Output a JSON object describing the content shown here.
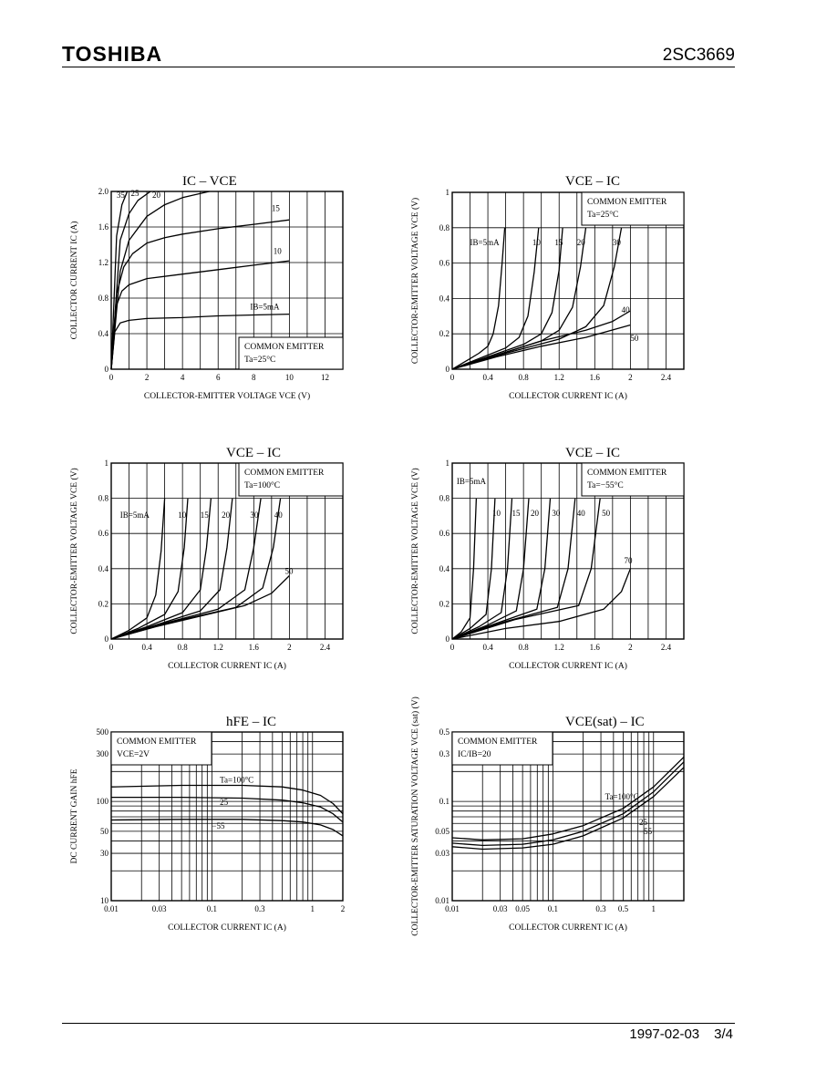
{
  "header": {
    "brand": "TOSHIBA",
    "part_number": "2SC3669"
  },
  "footer": {
    "date": "1997-02-03",
    "page": "3/4"
  },
  "colors": {
    "ink": "#000000",
    "paper": "#ffffff"
  },
  "chart_data": [
    {
      "id": "c1",
      "type": "line",
      "title": "IC – VCE",
      "xlabel": "COLLECTOR-EMITTER VOLTAGE  VCE  (V)",
      "ylabel": "COLLECTOR CURRENT  IC  (A)",
      "xlim": [
        0,
        13
      ],
      "ylim": [
        0,
        2.0
      ],
      "xticks": [
        0,
        2,
        4,
        6,
        8,
        10,
        12
      ],
      "yticks": [
        0,
        0.4,
        0.8,
        1.2,
        1.6,
        2.0
      ],
      "ytick_labels": [
        "0",
        "0.4",
        "0.8",
        "1.2",
        "1.6",
        "2.0"
      ],
      "annotations": [
        "COMMON EMITTER",
        "Ta=25°C"
      ],
      "series": [
        {
          "name": "IB=5mA",
          "x": [
            0,
            0.2,
            0.5,
            1,
            2,
            4,
            6,
            8,
            10
          ],
          "y": [
            0,
            0.42,
            0.52,
            0.55,
            0.57,
            0.58,
            0.6,
            0.61,
            0.62
          ]
        },
        {
          "name": "10",
          "x": [
            0,
            0.3,
            0.6,
            1,
            2,
            4,
            6,
            8,
            10
          ],
          "y": [
            0,
            0.72,
            0.88,
            0.95,
            1.02,
            1.07,
            1.12,
            1.17,
            1.22
          ]
        },
        {
          "name": "15",
          "x": [
            0,
            0.3,
            0.7,
            1.2,
            2,
            3,
            4,
            6,
            8,
            10
          ],
          "y": [
            0,
            0.85,
            1.15,
            1.3,
            1.42,
            1.48,
            1.52,
            1.58,
            1.63,
            1.68
          ]
        },
        {
          "name": "20",
          "x": [
            0,
            0.5,
            1,
            2,
            3,
            4,
            5.5
          ],
          "y": [
            0,
            1.1,
            1.45,
            1.72,
            1.85,
            1.93,
            2.0
          ]
        },
        {
          "name": "25",
          "x": [
            0,
            0.5,
            1,
            1.5,
            2.2
          ],
          "y": [
            0,
            1.45,
            1.75,
            1.9,
            2.0
          ]
        },
        {
          "name": "35",
          "x": [
            0,
            0.3,
            0.6,
            0.9
          ],
          "y": [
            0,
            1.5,
            1.85,
            2.0
          ]
        }
      ]
    },
    {
      "id": "c2",
      "type": "line",
      "title": "VCE – IC",
      "xlabel": "COLLECTOR CURRENT  IC  (A)",
      "ylabel": "COLLECTOR-EMITTER VOLTAGE  VCE  (V)",
      "xlim": [
        0,
        2.6
      ],
      "ylim": [
        0,
        1
      ],
      "xticks": [
        0,
        0.4,
        0.8,
        1.2,
        1.6,
        2.0,
        2.4
      ],
      "yticks": [
        0,
        0.2,
        0.4,
        0.6,
        0.8,
        1
      ],
      "ytick_labels": [
        "0",
        "0.2",
        "0.4",
        "0.6",
        "0.8",
        "1"
      ],
      "annotations": [
        "COMMON EMITTER",
        "Ta=25°C"
      ],
      "series": [
        {
          "name": "IB=5mA",
          "x": [
            0,
            0.1,
            0.2,
            0.3,
            0.4,
            0.46,
            0.52,
            0.56,
            0.59
          ],
          "y": [
            0,
            0.03,
            0.06,
            0.09,
            0.13,
            0.2,
            0.36,
            0.6,
            0.8
          ]
        },
        {
          "name": "10",
          "x": [
            0,
            0.3,
            0.6,
            0.75,
            0.85,
            0.92,
            0.97
          ],
          "y": [
            0,
            0.06,
            0.12,
            0.18,
            0.3,
            0.55,
            0.8
          ]
        },
        {
          "name": "15",
          "x": [
            0,
            0.4,
            0.8,
            1.0,
            1.12,
            1.2,
            1.24
          ],
          "y": [
            0,
            0.07,
            0.14,
            0.2,
            0.32,
            0.56,
            0.8
          ]
        },
        {
          "name": "20",
          "x": [
            0,
            0.5,
            1.0,
            1.2,
            1.35,
            1.44,
            1.5
          ],
          "y": [
            0,
            0.08,
            0.16,
            0.22,
            0.35,
            0.58,
            0.8
          ]
        },
        {
          "name": "30",
          "x": [
            0,
            0.6,
            1.2,
            1.5,
            1.7,
            1.82,
            1.9
          ],
          "y": [
            0,
            0.09,
            0.17,
            0.24,
            0.36,
            0.58,
            0.8
          ]
        },
        {
          "name": "40",
          "x": [
            0,
            0.5,
            1.0,
            1.5,
            1.8,
            2.0
          ],
          "y": [
            0,
            0.08,
            0.16,
            0.22,
            0.27,
            0.33
          ]
        },
        {
          "name": "50",
          "x": [
            0,
            0.5,
            1.0,
            1.5,
            2.0
          ],
          "y": [
            0,
            0.07,
            0.13,
            0.18,
            0.25
          ]
        }
      ]
    },
    {
      "id": "c3",
      "type": "line",
      "title": "VCE – IC",
      "xlabel": "COLLECTOR CURRENT  IC  (A)",
      "ylabel": "COLLECTOR-EMITTER VOLTAGE  VCE  (V)",
      "xlim": [
        0,
        2.6
      ],
      "ylim": [
        0,
        1
      ],
      "xticks": [
        0,
        0.4,
        0.8,
        1.2,
        1.6,
        2.0,
        2.4
      ],
      "yticks": [
        0,
        0.2,
        0.4,
        0.6,
        0.8,
        1
      ],
      "ytick_labels": [
        "0",
        "0.2",
        "0.4",
        "0.6",
        "0.8",
        "1"
      ],
      "annotations": [
        "COMMON EMITTER",
        "Ta=100°C"
      ],
      "series": [
        {
          "name": "IB=5mA",
          "x": [
            0,
            0.2,
            0.4,
            0.5,
            0.56,
            0.6
          ],
          "y": [
            0,
            0.05,
            0.12,
            0.25,
            0.5,
            0.8
          ]
        },
        {
          "name": "10",
          "x": [
            0,
            0.3,
            0.6,
            0.75,
            0.82,
            0.86
          ],
          "y": [
            0,
            0.06,
            0.14,
            0.27,
            0.52,
            0.8
          ]
        },
        {
          "name": "15",
          "x": [
            0,
            0.4,
            0.8,
            1.0,
            1.07,
            1.12
          ],
          "y": [
            0,
            0.07,
            0.15,
            0.28,
            0.52,
            0.8
          ]
        },
        {
          "name": "20",
          "x": [
            0,
            0.5,
            1.0,
            1.22,
            1.3,
            1.36
          ],
          "y": [
            0,
            0.08,
            0.16,
            0.28,
            0.52,
            0.8
          ]
        },
        {
          "name": "30",
          "x": [
            0,
            0.6,
            1.2,
            1.5,
            1.6,
            1.68
          ],
          "y": [
            0,
            0.09,
            0.17,
            0.28,
            0.52,
            0.8
          ]
        },
        {
          "name": "40",
          "x": [
            0,
            0.7,
            1.4,
            1.7,
            1.82,
            1.9
          ],
          "y": [
            0,
            0.1,
            0.18,
            0.29,
            0.52,
            0.8
          ]
        },
        {
          "name": "50",
          "x": [
            0,
            0.5,
            1.0,
            1.5,
            1.8,
            2.0
          ],
          "y": [
            0,
            0.07,
            0.13,
            0.19,
            0.26,
            0.36
          ]
        }
      ]
    },
    {
      "id": "c4",
      "type": "line",
      "title": "VCE – IC",
      "xlabel": "COLLECTOR CURRENT  IC  (A)",
      "ylabel": "COLLECTOR-EMITTER VOLTAGE  VCE  (V)",
      "xlim": [
        0,
        2.6
      ],
      "ylim": [
        0,
        1
      ],
      "xticks": [
        0,
        0.4,
        0.8,
        1.2,
        1.6,
        2.0,
        2.4
      ],
      "yticks": [
        0,
        0.2,
        0.4,
        0.6,
        0.8,
        1
      ],
      "ytick_labels": [
        "0",
        "0.2",
        "0.4",
        "0.6",
        "0.8",
        "1"
      ],
      "annotations": [
        "COMMON EMITTER",
        "Ta=−55°C"
      ],
      "series": [
        {
          "name": "IB=5mA",
          "x": [
            0,
            0.1,
            0.2,
            0.24,
            0.27
          ],
          "y": [
            0,
            0.04,
            0.12,
            0.4,
            0.8
          ]
        },
        {
          "name": "10",
          "x": [
            0,
            0.2,
            0.38,
            0.44,
            0.48
          ],
          "y": [
            0,
            0.06,
            0.14,
            0.4,
            0.8
          ]
        },
        {
          "name": "15",
          "x": [
            0,
            0.3,
            0.55,
            0.62,
            0.67
          ],
          "y": [
            0,
            0.07,
            0.15,
            0.4,
            0.8
          ]
        },
        {
          "name": "20",
          "x": [
            0,
            0.4,
            0.72,
            0.8,
            0.86
          ],
          "y": [
            0,
            0.08,
            0.16,
            0.4,
            0.8
          ]
        },
        {
          "name": "30",
          "x": [
            0,
            0.5,
            0.95,
            1.04,
            1.1
          ],
          "y": [
            0,
            0.09,
            0.17,
            0.4,
            0.8
          ]
        },
        {
          "name": "40",
          "x": [
            0,
            0.6,
            1.18,
            1.3,
            1.38
          ],
          "y": [
            0,
            0.1,
            0.18,
            0.4,
            0.8
          ]
        },
        {
          "name": "50",
          "x": [
            0,
            0.7,
            1.42,
            1.56,
            1.66
          ],
          "y": [
            0,
            0.11,
            0.19,
            0.4,
            0.8
          ]
        },
        {
          "name": "70",
          "x": [
            0,
            0.6,
            1.2,
            1.7,
            1.9,
            2.0
          ],
          "y": [
            0,
            0.06,
            0.1,
            0.17,
            0.27,
            0.4
          ]
        }
      ]
    },
    {
      "id": "c5",
      "type": "line",
      "scale": "log-log",
      "title": "hFE – IC",
      "xlabel": "COLLECTOR CURRENT  IC  (A)",
      "ylabel": "DC CURRENT GAIN  hFE",
      "xlim": [
        0.01,
        2
      ],
      "ylim": [
        10,
        500
      ],
      "xticks": [
        0.01,
        0.03,
        0.1,
        0.3,
        1,
        2
      ],
      "xtick_labels": [
        "0.01",
        "0.03",
        "0.1",
        "0.3",
        "1",
        "2"
      ],
      "yticks": [
        10,
        30,
        50,
        100,
        300,
        500
      ],
      "ytick_labels": [
        "10",
        "30",
        "50",
        "100",
        "300",
        "500"
      ],
      "annotations": [
        "COMMON EMITTER",
        "VCE=2V"
      ],
      "series": [
        {
          "name": "Ta=100°C",
          "x": [
            0.01,
            0.05,
            0.2,
            0.5,
            0.8,
            1.2,
            1.6,
            2
          ],
          "y": [
            140,
            145,
            145,
            140,
            130,
            115,
            95,
            75
          ]
        },
        {
          "name": "25",
          "x": [
            0.01,
            0.05,
            0.2,
            0.5,
            0.8,
            1.2,
            1.6,
            2
          ],
          "y": [
            110,
            110,
            108,
            103,
            97,
            88,
            75,
            62
          ]
        },
        {
          "name": "−55",
          "x": [
            0.01,
            0.05,
            0.2,
            0.5,
            0.8,
            1.2,
            1.6,
            2
          ],
          "y": [
            65,
            66,
            66,
            64,
            62,
            58,
            52,
            45
          ]
        }
      ]
    },
    {
      "id": "c6",
      "type": "line",
      "scale": "log-log",
      "title": "VCE(sat) – IC",
      "xlabel": "COLLECTOR CURRENT  IC  (A)",
      "ylabel": "COLLECTOR-EMITTER SATURATION VOLTAGE  VCE (sat)  (V)",
      "xlim": [
        0.01,
        2
      ],
      "ylim": [
        0.01,
        0.5
      ],
      "xticks": [
        0.01,
        0.03,
        0.05,
        0.1,
        0.3,
        0.5,
        1
      ],
      "xtick_labels": [
        "0.01",
        "0.03",
        "0.05",
        "0.1",
        "0.3",
        "0.5",
        "1"
      ],
      "yticks": [
        0.01,
        0.03,
        0.05,
        0.1,
        0.3,
        0.5
      ],
      "ytick_labels": [
        "0.01",
        "0.03",
        "0.05",
        "0.1",
        "0.3",
        "0.5"
      ],
      "annotations": [
        "COMMON EMITTER",
        "IC/IB=20"
      ],
      "series": [
        {
          "name": "Ta=100°C",
          "x": [
            0.01,
            0.02,
            0.05,
            0.1,
            0.2,
            0.5,
            1,
            2
          ],
          "y": [
            0.043,
            0.041,
            0.042,
            0.047,
            0.057,
            0.085,
            0.14,
            0.28
          ]
        },
        {
          "name": "25",
          "x": [
            0.01,
            0.02,
            0.05,
            0.1,
            0.2,
            0.5,
            1,
            2
          ],
          "y": [
            0.038,
            0.036,
            0.037,
            0.041,
            0.05,
            0.075,
            0.125,
            0.25
          ]
        },
        {
          "name": "−55",
          "x": [
            0.01,
            0.02,
            0.05,
            0.1,
            0.2,
            0.5,
            1,
            2
          ],
          "y": [
            0.035,
            0.033,
            0.034,
            0.037,
            0.045,
            0.068,
            0.112,
            0.22
          ]
        }
      ]
    }
  ]
}
